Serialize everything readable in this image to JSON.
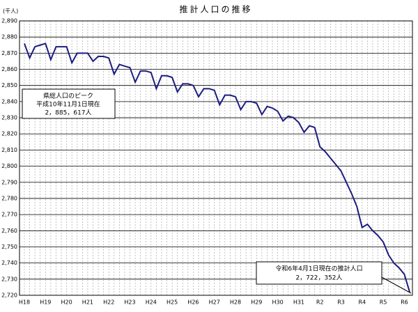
{
  "chart_data": {
    "type": "line",
    "title": "推計人口の推移",
    "ylabel": "(千人)",
    "categories": [
      "H18",
      null,
      null,
      null,
      "H19",
      null,
      null,
      null,
      "H20",
      null,
      null,
      null,
      "H21",
      null,
      null,
      null,
      "H22",
      null,
      null,
      null,
      "H23",
      null,
      null,
      null,
      "H24",
      null,
      null,
      null,
      "H25",
      null,
      null,
      null,
      "H26",
      null,
      null,
      null,
      "H27",
      null,
      null,
      null,
      "H28",
      null,
      null,
      null,
      "H29",
      null,
      null,
      null,
      "H30",
      null,
      null,
      null,
      "H31",
      null,
      null,
      null,
      "R2",
      null,
      null,
      null,
      "R3",
      null,
      null,
      null,
      "R4",
      null,
      null,
      null,
      "R5",
      null,
      null,
      null,
      "R6",
      null
    ],
    "series": [
      {
        "color": "#1c1c80",
        "values": [
          2876,
          2867,
          2874,
          2875,
          2876,
          2866,
          2874,
          2874,
          2874,
          2864,
          2870,
          2870,
          2870,
          2865,
          2868,
          2868,
          2867,
          2857,
          2863,
          2862,
          2861,
          2852,
          2859,
          2859,
          2858,
          2848,
          2856,
          2856,
          2855,
          2846,
          2851,
          2851,
          2850,
          2843,
          2848,
          2848,
          2847,
          2838,
          2844,
          2844,
          2843,
          2835,
          2840,
          2840,
          2839,
          2832,
          2837,
          2836,
          2834,
          2828,
          2831,
          2830,
          2827,
          2821,
          2825,
          2824,
          2812,
          2809,
          2805,
          2801,
          2797,
          2790,
          2783,
          2775,
          2762,
          2764,
          2760,
          2757,
          2753,
          2745,
          2740,
          2737,
          2733,
          2722
        ]
      }
    ],
    "ylim": [
      2720,
      2890
    ],
    "yticks": [
      {
        "value": 2720,
        "label": "2,720"
      },
      {
        "value": 2730,
        "label": "2,730"
      },
      {
        "value": 2740,
        "label": "2,740"
      },
      {
        "value": 2750,
        "label": "2,750"
      },
      {
        "value": 2760,
        "label": "2,760"
      },
      {
        "value": 2770,
        "label": "2,770"
      },
      {
        "value": 2780,
        "label": "2,780"
      },
      {
        "value": 2790,
        "label": "2,790"
      },
      {
        "value": 2800,
        "label": "2,800"
      },
      {
        "value": 2810,
        "label": "2,810"
      },
      {
        "value": 2820,
        "label": "2,820"
      },
      {
        "value": 2830,
        "label": "2,830"
      },
      {
        "value": 2840,
        "label": "2,840"
      },
      {
        "value": 2850,
        "label": "2,850"
      },
      {
        "value": 2860,
        "label": "2,860"
      },
      {
        "value": 2870,
        "label": "2,870"
      },
      {
        "value": 2880,
        "label": "2,880"
      },
      {
        "value": 2890,
        "label": "2,890"
      }
    ],
    "grid": true,
    "annotations": [
      {
        "lines": [
          "県総人口のピーク",
          "平成10年11月1日現在",
          "2，885，617人"
        ]
      },
      {
        "lines": [
          "令和6年4月1日現在の推計人口",
          "2，722，352人"
        ]
      }
    ]
  }
}
